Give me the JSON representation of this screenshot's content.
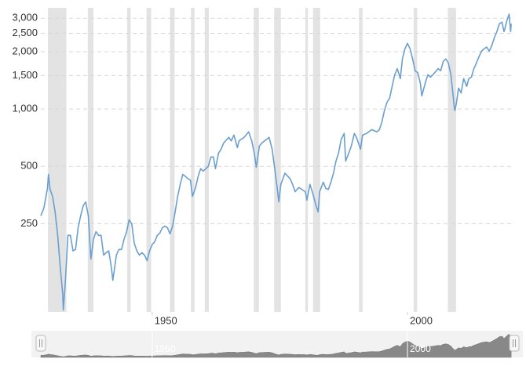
{
  "chart_data": {
    "type": "line",
    "log_y": true,
    "grid": true,
    "color": "#6a9fcf",
    "recession_color": "#e3e3e3",
    "xlim": [
      1928.2,
      2020.9
    ],
    "ylim": [
      86,
      3400
    ],
    "xticks": [
      1950,
      2000
    ],
    "yticks": [
      250,
      500,
      {
        "value": 1000,
        "label": "1,000"
      },
      {
        "value": 1500,
        "label": "1,500"
      },
      {
        "value": 2000,
        "label": "2,000"
      },
      {
        "value": 2500,
        "label": "2,500"
      },
      {
        "value": 3000,
        "label": "3,000"
      }
    ],
    "recessions": [
      [
        1929.6,
        1933.2
      ],
      [
        1937.4,
        1938.5
      ],
      [
        1945.1,
        1945.8
      ],
      [
        1948.9,
        1949.8
      ],
      [
        1953.5,
        1954.4
      ],
      [
        1957.6,
        1958.3
      ],
      [
        1960.3,
        1961.1
      ],
      [
        1969.9,
        1970.9
      ],
      [
        1973.9,
        1975.2
      ],
      [
        1980.0,
        1980.5
      ],
      [
        1981.5,
        1982.9
      ],
      [
        1990.5,
        1991.2
      ],
      [
        2001.2,
        2001.9
      ],
      [
        2007.9,
        2009.5
      ]
    ],
    "x": [
      1928.2,
      1928.8,
      1929.5,
      1929.7,
      1930.0,
      1930.5,
      1931.0,
      1931.5,
      1932.0,
      1932.5,
      1932.6,
      1933.0,
      1933.5,
      1934.0,
      1934.5,
      1935.0,
      1935.5,
      1936.0,
      1936.5,
      1937.0,
      1937.5,
      1938.0,
      1938.5,
      1939.0,
      1939.5,
      1940.0,
      1940.5,
      1941.0,
      1941.5,
      1942.0,
      1942.3,
      1943.0,
      1943.5,
      1944.0,
      1944.5,
      1945.0,
      1945.5,
      1946.0,
      1946.5,
      1947.0,
      1947.5,
      1948.0,
      1948.5,
      1949.0,
      1949.5,
      1950.0,
      1950.5,
      1951.0,
      1951.5,
      1952.0,
      1952.5,
      1953.0,
      1953.5,
      1954.0,
      1954.5,
      1955.0,
      1955.5,
      1956.0,
      1956.5,
      1957.0,
      1957.5,
      1957.9,
      1958.5,
      1959.0,
      1959.5,
      1960.0,
      1960.5,
      1961.0,
      1961.5,
      1962.0,
      1962.4,
      1963.0,
      1963.5,
      1964.0,
      1965.0,
      1965.5,
      1966.0,
      1966.7,
      1967.0,
      1968.0,
      1968.9,
      1969.5,
      1970.0,
      1970.4,
      1971.0,
      1971.5,
      1972.0,
      1972.9,
      1973.5,
      1974.0,
      1974.5,
      1974.8,
      1975.2,
      1976.0,
      1977.0,
      1977.5,
      1978.0,
      1978.7,
      1979.0,
      1980.0,
      1980.3,
      1980.9,
      1981.5,
      1982.0,
      1982.5,
      1982.8,
      1983.5,
      1984.0,
      1984.5,
      1985.0,
      1985.5,
      1986.0,
      1986.5,
      1987.0,
      1987.6,
      1987.9,
      1988.5,
      1989.0,
      1989.6,
      1990.0,
      1990.8,
      1991.2,
      1992.0,
      1993.0,
      1994.0,
      1994.5,
      1995.0,
      1995.5,
      1996.0,
      1996.5,
      1997.0,
      1997.5,
      1998.0,
      1998.6,
      1999.0,
      1999.5,
      2000.0,
      2000.5,
      2001.0,
      2001.5,
      2002.0,
      2002.5,
      2002.8,
      2003.5,
      2004.0,
      2004.5,
      2005.0,
      2006.0,
      2006.5,
      2007.0,
      2007.5,
      2008.0,
      2008.5,
      2008.9,
      2009.2,
      2009.3,
      2009.6,
      2010.0,
      2010.5,
      2011.0,
      2011.6,
      2012.0,
      2012.5,
      2013.0,
      2013.5,
      2014.0,
      2014.5,
      2015.0,
      2015.5,
      2016.0,
      2016.5,
      2017.0,
      2017.5,
      2018.0,
      2018.5,
      2018.9,
      2019.0,
      2019.5,
      2019.9,
      2020.2,
      2020.3
    ],
    "values": [
      275,
      302,
      383,
      454,
      380,
      348,
      288,
      217,
      148,
      106,
      88,
      123,
      217,
      217,
      180,
      183,
      238,
      275,
      311,
      325,
      275,
      163,
      207,
      227,
      217,
      217,
      171,
      176,
      180,
      148,
      126,
      171,
      183,
      183,
      207,
      227,
      262,
      250,
      197,
      180,
      171,
      176,
      171,
      160,
      180,
      194,
      201,
      217,
      223,
      238,
      243,
      238,
      221,
      243,
      288,
      348,
      402,
      454,
      443,
      431,
      423,
      348,
      387,
      443,
      486,
      472,
      486,
      500,
      560,
      560,
      486,
      587,
      615,
      663,
      710,
      680,
      730,
      627,
      680,
      710,
      759,
      680,
      587,
      495,
      640,
      663,
      680,
      710,
      615,
      486,
      383,
      325,
      402,
      460,
      431,
      402,
      368,
      387,
      383,
      368,
      332,
      402,
      357,
      317,
      288,
      368,
      413,
      383,
      378,
      413,
      460,
      533,
      587,
      690,
      745,
      533,
      587,
      640,
      745,
      710,
      615,
      730,
      745,
      780,
      759,
      780,
      857,
      988,
      1087,
      1140,
      1315,
      1515,
      1630,
      1445,
      1833,
      2072,
      2212,
      2072,
      1833,
      1589,
      1550,
      1376,
      1172,
      1376,
      1515,
      1470,
      1515,
      1630,
      1589,
      1780,
      1833,
      1745,
      1515,
      1200,
      1000,
      982,
      1087,
      1288,
      1215,
      1445,
      1315,
      1445,
      1470,
      1630,
      1745,
      1884,
      2014,
      2072,
      2115,
      2014,
      2150,
      2367,
      2554,
      2805,
      2860,
      2554,
      2600,
      2940,
      3150,
      2554,
      2805
    ]
  }
}
